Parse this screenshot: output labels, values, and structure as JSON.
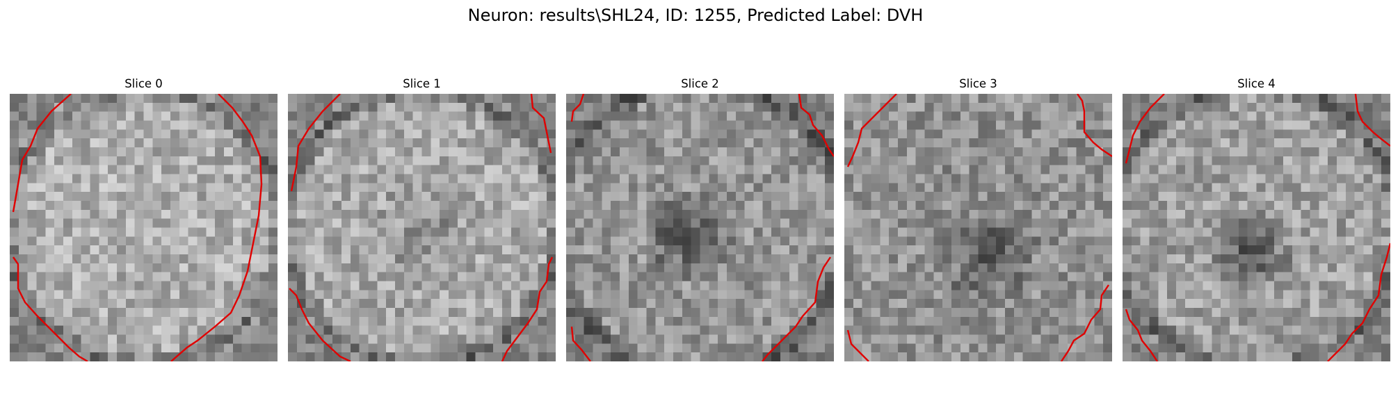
{
  "figure": {
    "title": "Neuron: results\\SHL24, ID: 1255, Predicted Label: DVH"
  },
  "panels": [
    {
      "title": "Slice 0",
      "contour_color": "#e00000"
    },
    {
      "title": "Slice 1",
      "contour_color": "#e00000"
    },
    {
      "title": "Slice 2",
      "contour_color": "#e00000"
    },
    {
      "title": "Slice 3",
      "contour_color": "#e00000"
    },
    {
      "title": "Slice 4",
      "contour_color": "#e00000"
    }
  ],
  "colormap": "gray"
}
